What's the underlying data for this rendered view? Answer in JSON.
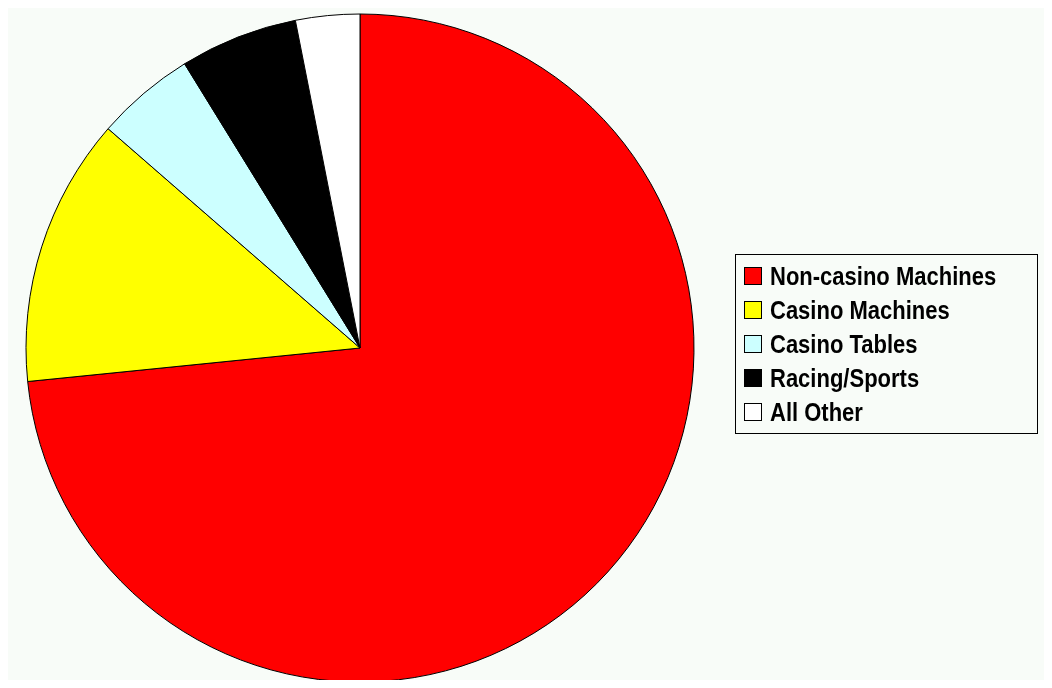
{
  "chart_data": {
    "type": "pie",
    "categories": [
      "Non-casino Machines",
      "Casino Machines",
      "Casino Tables",
      "Racing/Sports",
      "All Other"
    ],
    "values": [
      73.4,
      13.0,
      4.8,
      5.7,
      3.1
    ],
    "colors": [
      "#ff0000",
      "#ffff00",
      "#ccffff",
      "#000000",
      "#ffffff"
    ],
    "legend": "right"
  }
}
